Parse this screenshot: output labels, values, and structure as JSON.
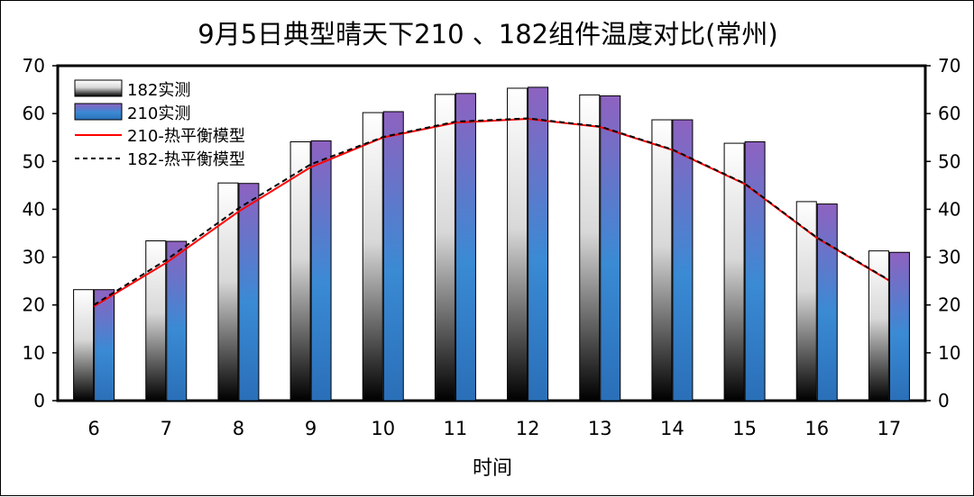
{
  "chart_data": {
    "type": "bar",
    "title": "9月5日典型晴天下210 、182组件温度对比(常州)",
    "xlabel": "时间",
    "ylabel": "",
    "ylim": [
      0,
      70
    ],
    "y_ticks": [
      "0",
      "10",
      "20",
      "30",
      "40",
      "50",
      "60",
      "70"
    ],
    "categories": [
      "6",
      "7",
      "8",
      "9",
      "10",
      "11",
      "12",
      "13",
      "14",
      "15",
      "16",
      "17"
    ],
    "series": [
      {
        "name": "182实测",
        "kind": "bar",
        "style": "gray-gradient",
        "values": [
          23.2,
          33.4,
          45.5,
          54.1,
          60.2,
          64.0,
          65.3,
          63.9,
          58.7,
          53.8,
          41.6,
          31.3
        ]
      },
      {
        "name": "210实测",
        "kind": "bar",
        "style": "blue-purple-gradient",
        "values": [
          23.2,
          33.3,
          45.4,
          54.3,
          60.4,
          64.2,
          65.5,
          63.7,
          58.7,
          54.1,
          41.1,
          31.0
        ]
      },
      {
        "name": "210-热平衡模型",
        "kind": "line",
        "color": "#ff0000",
        "values": [
          19.7,
          28.8,
          39.5,
          48.8,
          55.0,
          58.1,
          58.9,
          57.2,
          52.4,
          45.3,
          34.0,
          25.1
        ]
      },
      {
        "name": "182-热平衡模型",
        "kind": "line",
        "color": "#000000",
        "dash": true,
        "values": [
          20.0,
          29.4,
          40.2,
          49.4,
          55.1,
          58.3,
          59.0,
          57.3,
          52.5,
          45.4,
          34.1,
          25.2
        ]
      }
    ],
    "legend": "top-left",
    "grid": false,
    "secondary_axis": "right, same scale"
  }
}
